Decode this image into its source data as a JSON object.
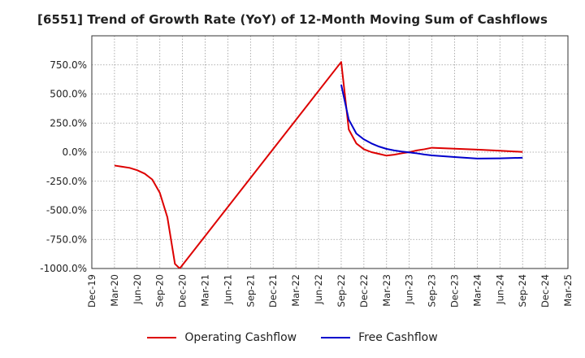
{
  "chart_data": {
    "type": "line",
    "title": "[6551]  Trend of Growth Rate (YoY) of 12-Month Moving Sum of Cashflows",
    "xlabel": "",
    "ylabel": "",
    "ylim": [
      -1000,
      1000
    ],
    "y_ticks": [
      -1000,
      -750,
      -500,
      -250,
      0,
      250,
      500,
      750
    ],
    "y_tick_labels": [
      "-1000.0%",
      "-750.0%",
      "-500.0%",
      "-250.0%",
      "0.0%",
      "250.0%",
      "500.0%",
      "750.0%"
    ],
    "x_range": [
      "2019-12",
      "2025-03"
    ],
    "x_ticks": [
      "2019-12",
      "2020-03",
      "2020-06",
      "2020-09",
      "2020-12",
      "2021-03",
      "2021-06",
      "2021-09",
      "2021-12",
      "2022-03",
      "2022-06",
      "2022-09",
      "2022-12",
      "2023-03",
      "2023-06",
      "2023-09",
      "2023-12",
      "2024-03",
      "2024-06",
      "2024-09",
      "2024-12",
      "2025-03"
    ],
    "x_tick_labels": [
      "Dec-19",
      "Mar-20",
      "Jun-20",
      "Sep-20",
      "Dec-20",
      "Mar-21",
      "Jun-21",
      "Sep-21",
      "Dec-21",
      "Mar-22",
      "Jun-22",
      "Sep-22",
      "Dec-22",
      "Mar-23",
      "Jun-23",
      "Sep-23",
      "Dec-23",
      "Mar-24",
      "Jun-24",
      "Sep-24",
      "Dec-24",
      "Mar-25"
    ],
    "grid": true,
    "legend_position": "bottom",
    "series": [
      {
        "name": "Operating Cashflow",
        "color": "#dd0000",
        "x": [
          "2020-03",
          "2020-04",
          "2020-05",
          "2020-06",
          "2020-07",
          "2020-08",
          "2020-09",
          "2020-10",
          "2020-11",
          "2020-11-20",
          "2022-09",
          "2022-10",
          "2022-11",
          "2022-12",
          "2023-01",
          "2023-02",
          "2023-03",
          "2023-04",
          "2023-05",
          "2023-06",
          "2023-07",
          "2023-08",
          "2023-09",
          "2023-12",
          "2024-03",
          "2024-06",
          "2024-09"
        ],
        "y": [
          -115,
          -125,
          -135,
          -155,
          -185,
          -235,
          -350,
          -560,
          -960,
          -1000,
          775,
          195,
          75,
          25,
          0,
          -15,
          -30,
          -22,
          -10,
          0,
          15,
          25,
          38,
          30,
          22,
          12,
          2
        ]
      },
      {
        "name": "Free Cashflow",
        "color": "#0000cc",
        "x": [
          "2022-09",
          "2022-10",
          "2022-11",
          "2022-12",
          "2023-01",
          "2023-02",
          "2023-03",
          "2023-04",
          "2023-05",
          "2023-06",
          "2023-07",
          "2023-08",
          "2023-09",
          "2023-12",
          "2024-03",
          "2024-06",
          "2024-09"
        ],
        "y": [
          580,
          280,
          160,
          110,
          75,
          48,
          28,
          15,
          5,
          -2,
          -10,
          -20,
          -28,
          -42,
          -55,
          -53,
          -48
        ]
      }
    ]
  }
}
